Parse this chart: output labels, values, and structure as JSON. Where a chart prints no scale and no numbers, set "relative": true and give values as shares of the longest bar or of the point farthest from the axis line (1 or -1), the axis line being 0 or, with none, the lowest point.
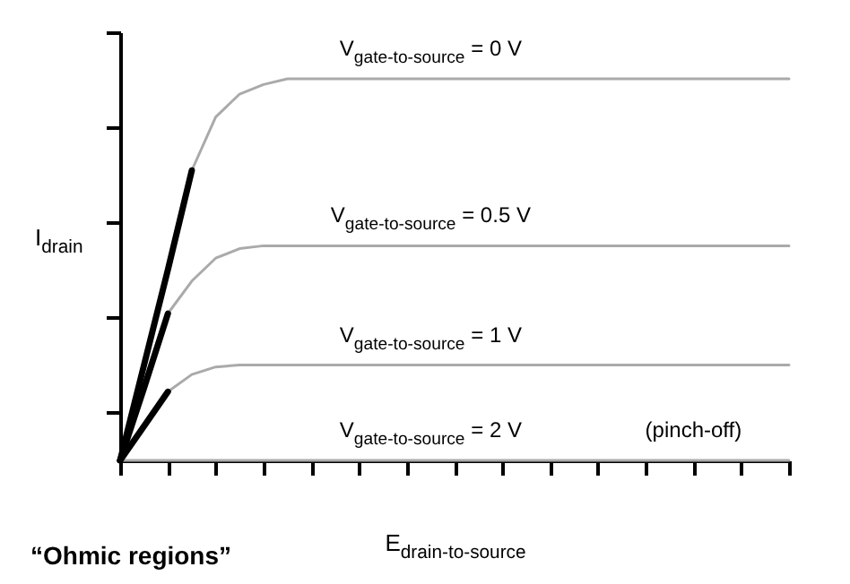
{
  "chart_data": {
    "type": "line",
    "relative": true,
    "xlabel": "E$_{drain-to-source}$",
    "ylabel": "I$_{drain}$",
    "categories": [
      null,
      null,
      null,
      null,
      null,
      null,
      null,
      null,
      null,
      null,
      null,
      null,
      null,
      null,
      null,
      null,
      null,
      null,
      null,
      null,
      null,
      null,
      null,
      null,
      null,
      null,
      null,
      null,
      null
    ],
    "series": [
      {
        "name": "V$_{gate-to-source}$ = 0 V",
        "color": "#aaaaaa",
        "values": [
          null,
          null,
          null,
          0.76,
          0.9,
          0.96,
          0.985,
          1,
          1,
          1,
          1,
          1,
          1,
          1,
          1,
          1,
          1,
          1,
          1,
          1,
          1,
          1,
          1,
          1,
          1,
          1,
          1,
          1,
          1
        ]
      },
      {
        "name": "V$_{gate-to-source}$ = 0.5 V",
        "color": "#aaaaaa",
        "values": [
          null,
          null,
          0.385,
          0.47,
          0.53,
          0.555,
          0.5625,
          0.5625,
          0.5625,
          0.5625,
          0.5625,
          0.5625,
          0.5625,
          0.5625,
          0.5625,
          0.5625,
          0.5625,
          0.5625,
          0.5625,
          0.5625,
          0.5625,
          0.5625,
          0.5625,
          0.5625,
          0.5625,
          0.5625,
          0.5625,
          0.5625,
          0.5625
        ]
      },
      {
        "name": "V$_{gate-to-source}$ = 1 V",
        "color": "#aaaaaa",
        "values": [
          null,
          null,
          0.18,
          0.225,
          0.245,
          0.25,
          0.25,
          0.25,
          0.25,
          0.25,
          0.25,
          0.25,
          0.25,
          0.25,
          0.25,
          0.25,
          0.25,
          0.25,
          0.25,
          0.25,
          0.25,
          0.25,
          0.25,
          0.25,
          0.25,
          0.25,
          0.25,
          0.25,
          0.25
        ]
      },
      {
        "name": "V$_{gate-to-source}$ = 2 V",
        "color": "#aaaaaa",
        "values": [
          0,
          0,
          0,
          0,
          0,
          0,
          0,
          0,
          0,
          0,
          0,
          0,
          0,
          0,
          0,
          0,
          0,
          0,
          0,
          0,
          0,
          0,
          0,
          0,
          0,
          0,
          0,
          0,
          0
        ]
      },
      {
        "color": "#000000",
        "values": [
          0,
          0.25,
          0.5,
          0.76,
          null,
          null,
          null,
          null,
          null,
          null,
          null,
          null,
          null,
          null,
          null,
          null,
          null,
          null,
          null,
          null,
          null,
          null,
          null,
          null,
          null,
          null,
          null,
          null,
          null
        ]
      },
      {
        "color": "#000000",
        "values": [
          0,
          0.19,
          0.385,
          null,
          null,
          null,
          null,
          null,
          null,
          null,
          null,
          null,
          null,
          null,
          null,
          null,
          null,
          null,
          null,
          null,
          null,
          null,
          null,
          null,
          null,
          null,
          null,
          null,
          null
        ]
      },
      {
        "color": "#000000",
        "values": [
          0,
          0.09,
          0.18,
          null,
          null,
          null,
          null,
          null,
          null,
          null,
          null,
          null,
          null,
          null,
          null,
          null,
          null,
          null,
          null,
          null,
          null,
          null,
          null,
          null,
          null,
          null,
          null,
          null,
          null
        ]
      }
    ],
    "annotations": [
      "(pinch-off)",
      "“Ohmic regions”"
    ]
  }
}
